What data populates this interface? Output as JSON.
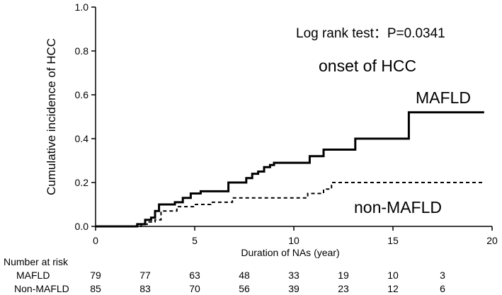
{
  "chart_data": {
    "type": "line",
    "subtype": "kaplan-meier step curve",
    "ylabel": "Cumulative incidence of HCC",
    "xlabel": "Duration of NAs (year)",
    "xlim": [
      0,
      20
    ],
    "ylim": [
      0,
      1.0
    ],
    "x_ticks": [
      0,
      5,
      10,
      15,
      20
    ],
    "x_tick_labels": [
      "0",
      "5",
      "10",
      "15",
      "20"
    ],
    "y_ticks": [
      0,
      0.2,
      0.4,
      0.6,
      0.8,
      1.0
    ],
    "y_tick_labels": [
      "0.0",
      "0.2",
      "0.4",
      "0.6",
      "0.8",
      "1.0"
    ],
    "annotations": {
      "test": "Log rank test：P=0.0341",
      "subtitle": "onset of HCC",
      "label_mafld": "MAFLD",
      "label_non_mafld": "non-MAFLD"
    },
    "series": [
      {
        "name": "MAFLD",
        "line_style": "solid",
        "color": "#000000",
        "x": [
          0,
          2.1,
          2.5,
          2.8,
          3.0,
          3.2,
          4.0,
          4.4,
          4.8,
          5.3,
          6.7,
          7.6,
          7.9,
          8.2,
          8.5,
          8.8,
          9.0,
          9.5,
          10.8,
          11.5,
          13.1,
          15.8,
          19.6
        ],
        "y": [
          0,
          0.01,
          0.03,
          0.04,
          0.07,
          0.1,
          0.11,
          0.13,
          0.15,
          0.16,
          0.2,
          0.22,
          0.24,
          0.25,
          0.27,
          0.28,
          0.29,
          0.29,
          0.32,
          0.35,
          0.4,
          0.52,
          0.52
        ]
      },
      {
        "name": "Non-MAFLD",
        "line_style": "dashed",
        "color": "#000000",
        "x": [
          0,
          2.3,
          2.7,
          3.0,
          3.3,
          4.1,
          5.0,
          5.8,
          6.9,
          8.3,
          10.7,
          11.5,
          11.9,
          19.6
        ],
        "y": [
          0,
          0.01,
          0.02,
          0.03,
          0.07,
          0.09,
          0.1,
          0.11,
          0.13,
          0.13,
          0.15,
          0.17,
          0.2,
          0.2
        ]
      }
    ],
    "risk_table": {
      "title": "Number at risk",
      "times": [
        0,
        2.5,
        5,
        7.5,
        10,
        12.5,
        15,
        17.5
      ],
      "rows": [
        {
          "label": "MAFLD",
          "values": [
            "79",
            "77",
            "63",
            "48",
            "33",
            "19",
            "10",
            "3"
          ]
        },
        {
          "label": "Non-MAFLD",
          "values": [
            "85",
            "83",
            "70",
            "56",
            "39",
            "23",
            "12",
            "6"
          ]
        }
      ]
    }
  }
}
